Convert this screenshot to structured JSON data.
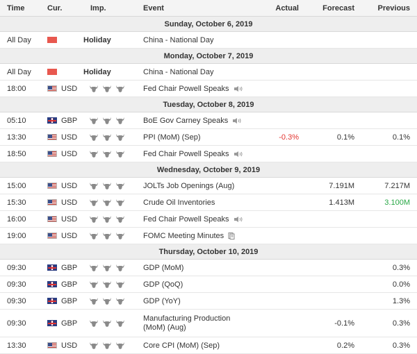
{
  "headers": {
    "time": "Time",
    "cur": "Cur.",
    "imp": "Imp.",
    "event": "Event",
    "actual": "Actual",
    "forecast": "Forecast",
    "previous": "Previous"
  },
  "days": [
    {
      "date": "Sunday, October 6, 2019",
      "rows": [
        {
          "time": "All Day",
          "flag": "cn",
          "cur": "",
          "holiday": "Holiday",
          "event": "China - National Day",
          "actual": "",
          "forecast": "",
          "previous": ""
        }
      ]
    },
    {
      "date": "Monday, October 7, 2019",
      "rows": [
        {
          "time": "All Day",
          "flag": "cn",
          "cur": "",
          "holiday": "Holiday",
          "event": "China - National Day",
          "actual": "",
          "forecast": "",
          "previous": ""
        },
        {
          "time": "18:00",
          "flag": "us",
          "cur": "USD",
          "bulls": 3,
          "event": "Fed Chair Powell Speaks",
          "icon": "speaker",
          "actual": "",
          "forecast": "",
          "previous": ""
        }
      ]
    },
    {
      "date": "Tuesday, October 8, 2019",
      "rows": [
        {
          "time": "05:10",
          "flag": "gb",
          "cur": "GBP",
          "bulls": 3,
          "event": "BoE Gov Carney Speaks",
          "icon": "speaker",
          "actual": "",
          "forecast": "",
          "previous": ""
        },
        {
          "time": "13:30",
          "flag": "us",
          "cur": "USD",
          "bulls": 3,
          "event": "PPI (MoM) (Sep)",
          "actual": "-0.3%",
          "actual_color": "red",
          "forecast": "0.1%",
          "previous": "0.1%"
        },
        {
          "time": "18:50",
          "flag": "us",
          "cur": "USD",
          "bulls": 3,
          "event": "Fed Chair Powell Speaks",
          "icon": "speaker",
          "actual": "",
          "forecast": "",
          "previous": ""
        }
      ]
    },
    {
      "date": "Wednesday, October 9, 2019",
      "rows": [
        {
          "time": "15:00",
          "flag": "us",
          "cur": "USD",
          "bulls": 3,
          "event": "JOLTs Job Openings (Aug)",
          "actual": "",
          "forecast": "7.191M",
          "previous": "7.217M"
        },
        {
          "time": "15:30",
          "flag": "us",
          "cur": "USD",
          "bulls": 3,
          "event": "Crude Oil Inventories",
          "actual": "",
          "forecast": "1.413M",
          "previous": "3.100M",
          "previous_color": "green"
        },
        {
          "time": "16:00",
          "flag": "us",
          "cur": "USD",
          "bulls": 3,
          "event": "Fed Chair Powell Speaks",
          "icon": "speaker",
          "actual": "",
          "forecast": "",
          "previous": ""
        },
        {
          "time": "19:00",
          "flag": "us",
          "cur": "USD",
          "bulls": 3,
          "event": "FOMC Meeting Minutes",
          "icon": "document",
          "actual": "",
          "forecast": "",
          "previous": ""
        }
      ]
    },
    {
      "date": "Thursday, October 10, 2019",
      "rows": [
        {
          "time": "09:30",
          "flag": "gb",
          "cur": "GBP",
          "bulls": 3,
          "event": "GDP (MoM)",
          "actual": "",
          "forecast": "",
          "previous": "0.3%"
        },
        {
          "time": "09:30",
          "flag": "gb",
          "cur": "GBP",
          "bulls": 3,
          "event": "GDP (QoQ)",
          "actual": "",
          "forecast": "",
          "previous": "0.0%"
        },
        {
          "time": "09:30",
          "flag": "gb",
          "cur": "GBP",
          "bulls": 3,
          "event": "GDP (YoY)",
          "actual": "",
          "forecast": "",
          "previous": "1.3%"
        },
        {
          "time": "09:30",
          "flag": "gb",
          "cur": "GBP",
          "bulls": 3,
          "event": "Manufacturing Production (MoM) (Aug)",
          "actual": "",
          "forecast": "-0.1%",
          "previous": "0.3%",
          "tall": true
        },
        {
          "time": "13:30",
          "flag": "us",
          "cur": "USD",
          "bulls": 3,
          "event": "Core CPI (MoM) (Sep)",
          "actual": "",
          "forecast": "0.2%",
          "previous": "0.3%"
        }
      ]
    }
  ],
  "colors": {
    "red": "#e3342f",
    "green": "#28a745",
    "header_bg": "#f4f4f4",
    "day_bg": "#eeeeee"
  }
}
